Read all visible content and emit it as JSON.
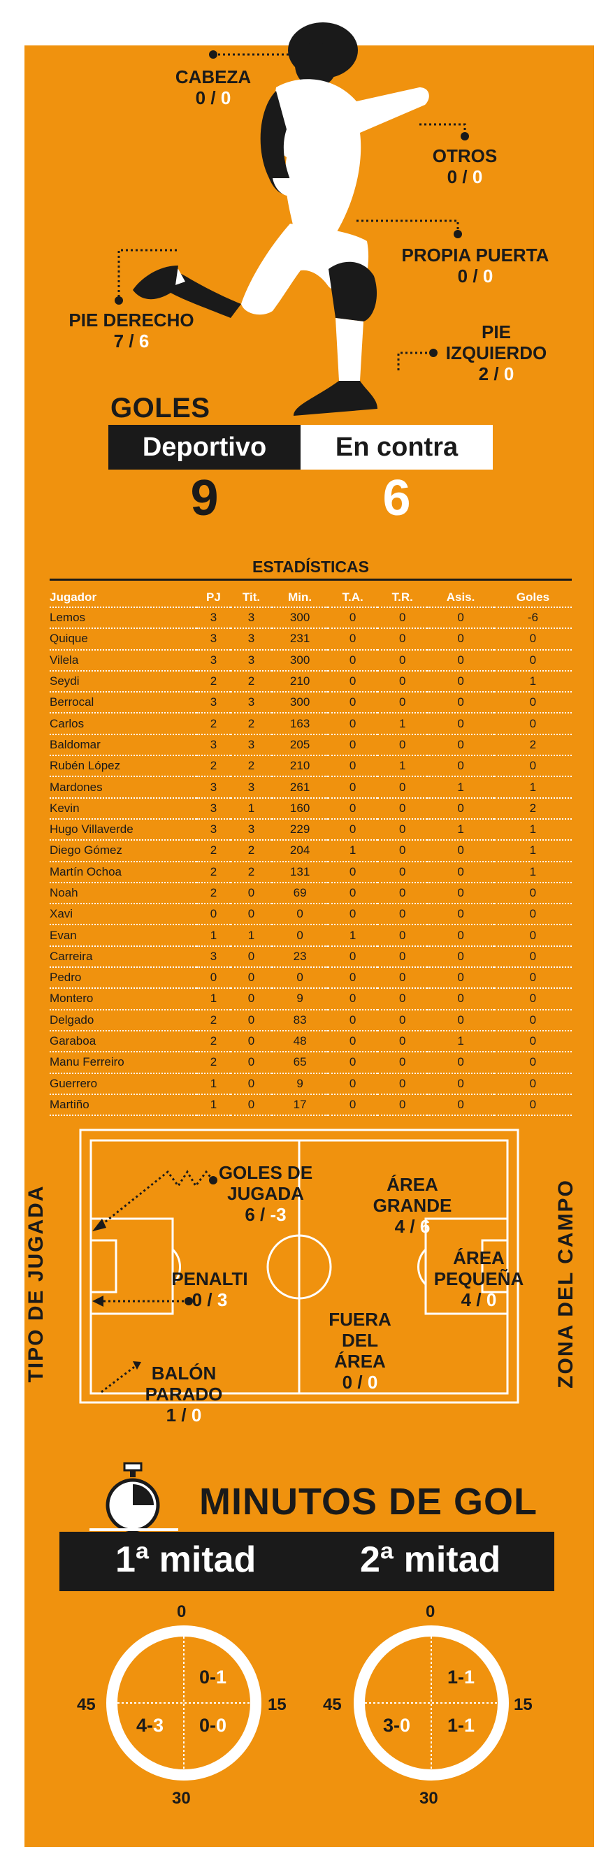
{
  "goal_types": {
    "head": {
      "label": "CABEZA",
      "for": "0",
      "against": "0"
    },
    "others": {
      "label": "OTROS",
      "for": "0",
      "against": "0"
    },
    "own_goal": {
      "label": "PROPIA PUERTA",
      "for": "0",
      "against": "0"
    },
    "right_foot": {
      "label": "PIE DERECHO",
      "for": "7",
      "against": "6"
    },
    "left_foot": {
      "label_1": "PIE",
      "label_2": "IZQUIERDO",
      "for": "2",
      "against": "0"
    },
    "separator": "/"
  },
  "goals": {
    "title": "GOLES",
    "team_label": "Deportivo",
    "against_label": "En contra",
    "team_value": "9",
    "against_value": "6"
  },
  "stats": {
    "title": "ESTADÍSTICAS",
    "columns": [
      "Jugador",
      "PJ",
      "Tit.",
      "Min.",
      "T.A.",
      "T.R.",
      "Asis.",
      "Goles"
    ],
    "rows": [
      [
        "Lemos",
        "3",
        "3",
        "300",
        "0",
        "0",
        "0",
        "-6"
      ],
      [
        "Quique",
        "3",
        "3",
        "231",
        "0",
        "0",
        "0",
        "0"
      ],
      [
        "Vilela",
        "3",
        "3",
        "300",
        "0",
        "0",
        "0",
        "0"
      ],
      [
        "Seydi",
        "2",
        "2",
        "210",
        "0",
        "0",
        "0",
        "1"
      ],
      [
        "Berrocal",
        "3",
        "3",
        "300",
        "0",
        "0",
        "0",
        "0"
      ],
      [
        "Carlos",
        "2",
        "2",
        "163",
        "0",
        "1",
        "0",
        "0"
      ],
      [
        "Baldomar",
        "3",
        "3",
        "205",
        "0",
        "0",
        "0",
        "2"
      ],
      [
        "Rubén López",
        "2",
        "2",
        "210",
        "0",
        "1",
        "0",
        "0"
      ],
      [
        "Mardones",
        "3",
        "3",
        "261",
        "0",
        "0",
        "1",
        "1"
      ],
      [
        "Kevin",
        "3",
        "1",
        "160",
        "0",
        "0",
        "0",
        "2"
      ],
      [
        "Hugo Villaverde",
        "3",
        "3",
        "229",
        "0",
        "0",
        "1",
        "1"
      ],
      [
        "Diego Gómez",
        "2",
        "2",
        "204",
        "1",
        "0",
        "0",
        "1"
      ],
      [
        "Martín Ochoa",
        "2",
        "2",
        "131",
        "0",
        "0",
        "0",
        "1"
      ],
      [
        "Noah",
        "2",
        "0",
        "69",
        "0",
        "0",
        "0",
        "0"
      ],
      [
        "Xavi",
        "0",
        "0",
        "0",
        "0",
        "0",
        "0",
        "0"
      ],
      [
        "Evan",
        "1",
        "1",
        "0",
        "1",
        "0",
        "0",
        "0"
      ],
      [
        "Carreira",
        "3",
        "0",
        "23",
        "0",
        "0",
        "0",
        "0"
      ],
      [
        "Pedro",
        "0",
        "0",
        "0",
        "0",
        "0",
        "0",
        "0"
      ],
      [
        "Montero",
        "1",
        "0",
        "9",
        "0",
        "0",
        "0",
        "0"
      ],
      [
        "Delgado",
        "2",
        "0",
        "83",
        "0",
        "0",
        "0",
        "0"
      ],
      [
        "Garaboa",
        "2",
        "0",
        "48",
        "0",
        "0",
        "1",
        "0"
      ],
      [
        "Manu Ferreiro",
        "2",
        "0",
        "65",
        "0",
        "0",
        "0",
        "0"
      ],
      [
        "Guerrero",
        "1",
        "0",
        "9",
        "0",
        "0",
        "0",
        "0"
      ],
      [
        "Martiño",
        "1",
        "0",
        "17",
        "0",
        "0",
        "0",
        "0"
      ]
    ]
  },
  "field": {
    "left_axis": "TIPO DE JUGADA",
    "right_axis": "ZONA DEL CAMPO",
    "open_play": {
      "label_1": "GOLES DE",
      "label_2": "JUGADA",
      "for": "6",
      "against": "-3"
    },
    "penalty": {
      "label": "PENALTI",
      "for": "0",
      "against": "3"
    },
    "set_piece": {
      "label_1": "BALÓN",
      "label_2": "PARADO",
      "for": "1",
      "against": "0"
    },
    "big_area": {
      "label_1": "ÁREA",
      "label_2": "GRANDE",
      "for": "4",
      "against": "6"
    },
    "small_area": {
      "label_1": "ÁREA",
      "label_2": "PEQUEÑA",
      "for": "4",
      "against": "0"
    },
    "outside": {
      "label_1": "FUERA",
      "label_2": "DEL",
      "label_3": "ÁREA",
      "for": "0",
      "against": "0"
    }
  },
  "minutes": {
    "title": "MINUTOS DE GOL",
    "first_half": "1ª mitad",
    "second_half": "2ª mitad",
    "dial_labels": {
      "top": "0",
      "right": "15",
      "bottom": "30",
      "left": "45"
    },
    "first": {
      "q1": {
        "for": "0",
        "against": "1"
      },
      "q2": {
        "for": "0",
        "against": "0"
      },
      "q3": {
        "for": "4",
        "against": "3"
      }
    },
    "second": {
      "q1": {
        "for": "1",
        "against": "1"
      },
      "q2": {
        "for": "1",
        "against": "1"
      },
      "q3": {
        "for": "3",
        "against": "0"
      }
    }
  },
  "colors": {
    "background": "#f0920e",
    "dark": "#1a1a1a",
    "white": "#ffffff"
  }
}
